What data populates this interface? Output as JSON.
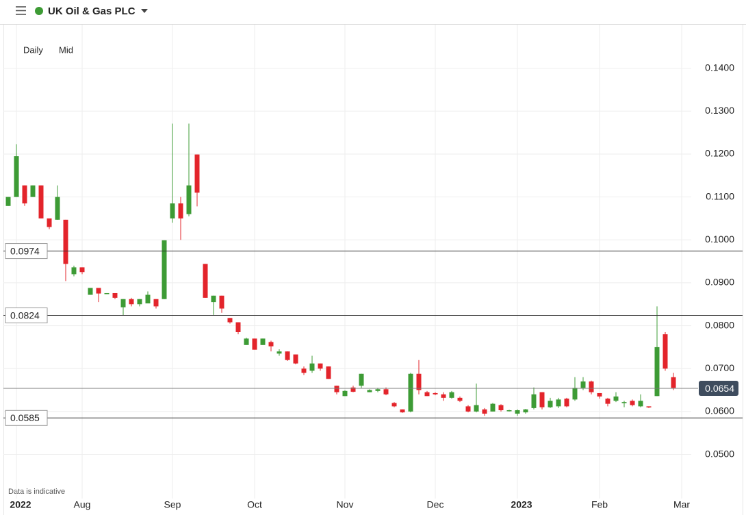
{
  "header": {
    "title": "UK Oil & Gas PLC"
  },
  "controls": [
    "Daily",
    "Mid"
  ],
  "note": "Data is indicative",
  "chart_data": {
    "type": "candlestick",
    "categories": [
      null,
      "2022",
      null,
      null,
      null,
      null,
      null,
      null,
      null,
      "Aug",
      null,
      null,
      null,
      null,
      null,
      null,
      null,
      null,
      null,
      null,
      "Sep",
      null,
      null,
      null,
      null,
      null,
      null,
      null,
      null,
      null,
      "Oct",
      null,
      null,
      null,
      null,
      null,
      null,
      null,
      null,
      null,
      null,
      "Nov",
      null,
      null,
      null,
      null,
      null,
      null,
      null,
      null,
      null,
      null,
      "Dec",
      null,
      null,
      null,
      null,
      null,
      null,
      null,
      null,
      null,
      "2023",
      null,
      null,
      null,
      null,
      null,
      null,
      null,
      null,
      null,
      "Feb",
      null,
      null,
      null,
      null,
      null,
      null,
      null,
      null,
      null,
      "Mar"
    ],
    "open": [
      0.1079,
      0.11,
      0.1127,
      0.11,
      0.1127,
      0.105,
      0.1047,
      0.1047,
      0.092,
      0.0936,
      0.0872,
      0.0888,
      0.0875,
      0.0876,
      0.0843,
      0.0862,
      0.085,
      0.0852,
      0.0862,
      0.0862,
      0.105,
      0.1085,
      0.106,
      0.1199,
      0.0944,
      0.0855,
      0.087,
      0.0818,
      0.0808,
      0.0755,
      0.077,
      0.0755,
      0.0762,
      0.0735,
      0.074,
      0.0733,
      0.07,
      0.0695,
      0.0712,
      0.0705,
      0.066,
      0.0636,
      0.0656,
      0.066,
      0.0645,
      0.0648,
      0.0652,
      0.062,
      0.0605,
      0.06,
      0.0688,
      0.0645,
      0.0643,
      0.064,
      0.0632,
      0.0632,
      0.0612,
      0.06,
      0.0605,
      0.06,
      0.0615,
      0.0602,
      0.0595,
      0.0598,
      0.0608,
      0.0645,
      0.061,
      0.0612,
      0.063,
      0.0628,
      0.0655,
      0.067,
      0.0643,
      0.063,
      0.0625,
      0.062,
      0.0625,
      0.0612,
      0.0612,
      0.0636,
      0.078,
      0.068,
      null
    ],
    "high": [
      0.11,
      0.1223,
      0.1127,
      0.1127,
      0.1127,
      0.105,
      0.1127,
      0.1047,
      0.094,
      0.0936,
      0.0888,
      0.0888,
      0.0876,
      0.0876,
      0.0862,
      0.0865,
      0.0862,
      0.088,
      0.0862,
      0.0999,
      0.1271,
      0.11,
      0.1271,
      0.1199,
      0.0944,
      0.087,
      0.087,
      0.0818,
      0.0808,
      0.0772,
      0.077,
      0.077,
      0.0765,
      0.0745,
      0.074,
      0.0733,
      0.0705,
      0.073,
      0.0712,
      0.0705,
      0.066,
      0.065,
      0.066,
      0.0688,
      0.0652,
      0.0655,
      0.0656,
      0.0622,
      0.0605,
      0.069,
      0.072,
      0.0648,
      0.0645,
      0.0645,
      0.0648,
      0.0635,
      0.0615,
      0.0665,
      0.0608,
      0.062,
      0.0617,
      0.0604,
      0.0605,
      0.0606,
      0.0656,
      0.0645,
      0.0632,
      0.0632,
      0.0632,
      0.068,
      0.068,
      0.0672,
      0.0643,
      0.0632,
      0.0645,
      0.0625,
      0.0628,
      0.064,
      0.0612,
      0.0845,
      0.0785,
      0.069,
      null
    ],
    "low": [
      0.1079,
      0.11,
      0.1079,
      0.11,
      0.105,
      0.1025,
      0.1047,
      0.0904,
      0.0915,
      0.092,
      0.0872,
      0.0855,
      0.0875,
      0.0862,
      0.0824,
      0.0845,
      0.0845,
      0.0852,
      0.084,
      0.0862,
      0.104,
      0.1,
      0.1055,
      0.1078,
      0.0865,
      0.0825,
      0.083,
      0.0805,
      0.078,
      0.0755,
      0.0744,
      0.0755,
      0.074,
      0.073,
      0.0718,
      0.071,
      0.0685,
      0.069,
      0.0695,
      0.0676,
      0.064,
      0.0636,
      0.0645,
      0.0655,
      0.0645,
      0.0645,
      0.0638,
      0.061,
      0.0597,
      0.0598,
      0.064,
      0.0636,
      0.0638,
      0.0625,
      0.063,
      0.0622,
      0.0598,
      0.0598,
      0.059,
      0.06,
      0.06,
      0.06,
      0.059,
      0.0595,
      0.0605,
      0.0605,
      0.0608,
      0.0608,
      0.061,
      0.0625,
      0.065,
      0.064,
      0.063,
      0.0612,
      0.0622,
      0.061,
      0.0612,
      0.061,
      0.0608,
      0.0636,
      0.0695,
      0.065,
      null
    ],
    "close": [
      0.11,
      0.1195,
      0.1085,
      0.1127,
      0.105,
      0.103,
      0.11,
      0.0944,
      0.0936,
      0.0925,
      0.0888,
      0.0875,
      0.0876,
      0.0865,
      0.0862,
      0.085,
      0.0862,
      0.0872,
      0.0845,
      0.0999,
      0.1085,
      0.105,
      0.1127,
      0.111,
      0.0865,
      0.087,
      0.084,
      0.0808,
      0.0785,
      0.077,
      0.0744,
      0.077,
      0.0752,
      0.074,
      0.072,
      0.0712,
      0.069,
      0.0712,
      0.07,
      0.0676,
      0.0645,
      0.0648,
      0.0646,
      0.0688,
      0.065,
      0.0652,
      0.064,
      0.0612,
      0.0598,
      0.0688,
      0.065,
      0.0636,
      0.064,
      0.0632,
      0.0645,
      0.0625,
      0.06,
      0.0615,
      0.0595,
      0.0618,
      0.0603,
      0.0603,
      0.0603,
      0.0605,
      0.064,
      0.061,
      0.0625,
      0.0628,
      0.0612,
      0.0655,
      0.067,
      0.0645,
      0.0635,
      0.0618,
      0.0635,
      0.0622,
      0.0615,
      0.0625,
      0.061,
      0.075,
      0.07,
      0.0655,
      null
    ],
    "up_color": "#3d9b35",
    "down_color": "#e3242b",
    "ylim": [
      0.037,
      0.15
    ],
    "yticks": [
      {
        "value": 0.05,
        "label": "0.0500"
      },
      {
        "value": 0.06,
        "label": "0.0600"
      },
      {
        "value": 0.07,
        "label": "0.0700"
      },
      {
        "value": 0.08,
        "label": "0.0800"
      },
      {
        "value": 0.09,
        "label": "0.0900"
      },
      {
        "value": 0.1,
        "label": "0.1000"
      },
      {
        "value": 0.11,
        "label": "0.1100"
      },
      {
        "value": 0.12,
        "label": "0.1200"
      },
      {
        "value": 0.13,
        "label": "0.1300"
      },
      {
        "value": 0.14,
        "label": "0.1400"
      }
    ],
    "hlines": [
      0.0974,
      0.0824,
      0.0585
    ],
    "last_price": 0.0654,
    "grid": true
  }
}
